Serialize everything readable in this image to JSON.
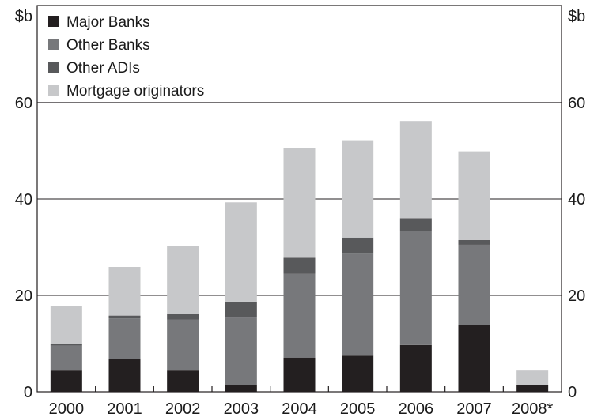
{
  "chart_data": {
    "type": "bar",
    "stacked": true,
    "unit_left": "$b",
    "unit_right": "$b",
    "categories": [
      "2000",
      "2001",
      "2002",
      "2003",
      "2004",
      "2005",
      "2006",
      "2007",
      "2008*"
    ],
    "series": [
      {
        "name": "Major Banks",
        "color": "#231f20",
        "values": [
          4.4,
          6.8,
          4.4,
          1.4,
          7.1,
          7.5,
          9.7,
          13.9,
          1.4
        ]
      },
      {
        "name": "Other Banks",
        "color": "#77787b",
        "values": [
          5.2,
          8.4,
          10.6,
          14.0,
          17.4,
          21.3,
          23.7,
          16.6,
          0.0
        ]
      },
      {
        "name": "Other ADIs",
        "color": "#58595b",
        "values": [
          0.3,
          0.6,
          1.2,
          3.3,
          3.3,
          3.2,
          2.6,
          1.0,
          0.0
        ]
      },
      {
        "name": "Mortgage originators",
        "color": "#c7c8ca",
        "values": [
          7.9,
          10.1,
          14.0,
          20.6,
          22.7,
          20.2,
          20.2,
          18.4,
          3.0
        ]
      }
    ],
    "ylim": [
      0,
      60
    ],
    "yticks": [
      "0",
      "20",
      "40",
      "60"
    ],
    "grid": true,
    "legend_position": "top-left"
  }
}
